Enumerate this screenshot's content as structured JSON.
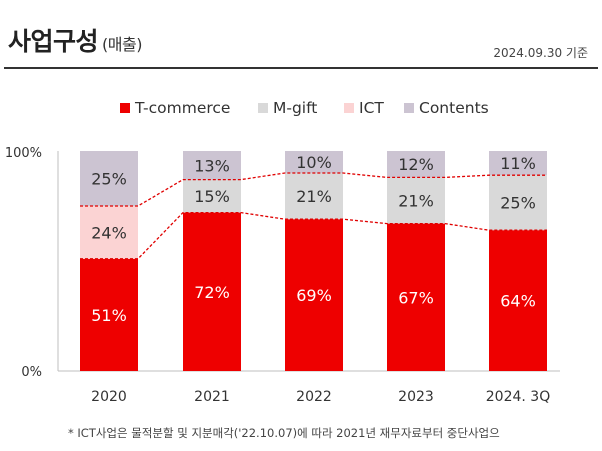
{
  "header": {
    "title": "사업구성",
    "subtitle": "(매출)",
    "as_of": "2024.09.30 기준"
  },
  "footnote": "* ICT사업은 물적분할 및 지분매각('22.10.07)에 따라 2021년 재무자료부터 중단사업으",
  "colors": {
    "T-commerce": "#ee0000",
    "M-gift": "#d9d9d9",
    "ICT": "#fbd3d3",
    "Contents": "#ccc4d2"
  },
  "chart_data": {
    "type": "bar",
    "stacked": true,
    "categories": [
      "2020",
      "2021",
      "2022",
      "2023",
      "2024. 3Q"
    ],
    "series": [
      {
        "name": "T-commerce",
        "values": [
          51,
          72,
          69,
          67,
          64
        ],
        "labels": [
          "51%",
          "72%",
          "69%",
          "67%",
          "64%"
        ]
      },
      {
        "name": "M-gift",
        "values": [
          0,
          15,
          21,
          21,
          25
        ],
        "labels": [
          "",
          "15%",
          "21%",
          "21%",
          "25%"
        ]
      },
      {
        "name": "ICT",
        "values": [
          24,
          0,
          0,
          0,
          0
        ],
        "labels": [
          "24%",
          "",
          "",
          "",
          ""
        ]
      },
      {
        "name": "Contents",
        "values": [
          25,
          13,
          10,
          12,
          11
        ],
        "labels": [
          "25%",
          "13%",
          "10%",
          "12%",
          "11%"
        ]
      }
    ],
    "y_ticks": [
      "0%",
      "100%"
    ],
    "ylim": [
      0,
      100
    ],
    "legend_position": "top",
    "grid": false,
    "connector_lines": "dashed"
  }
}
